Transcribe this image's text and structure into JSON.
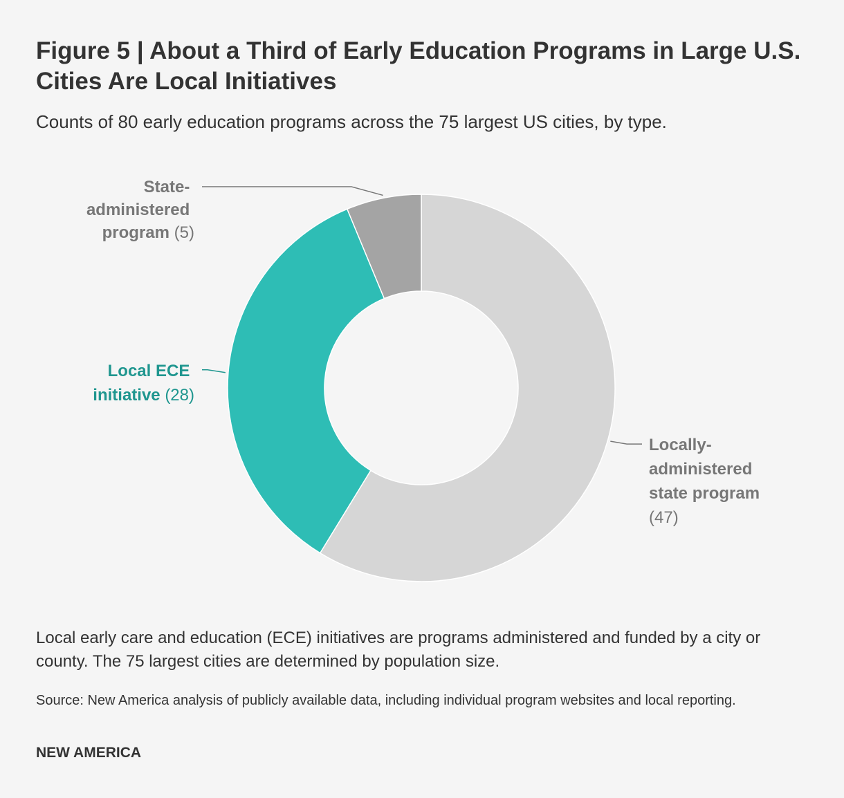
{
  "title": "Figure 5 | About a Third of Early Education Programs in Large U.S. Cities Are Local Initiatives",
  "subtitle": "Counts of 80 early education programs across the 75 largest US cities, by type.",
  "note": "Local early care and education (ECE) initiatives are programs administered and funded by a city or county. The 75 largest cities are determined by population size.",
  "source": "Source: New America analysis of publicly available data, including individual program websites and local reporting.",
  "brand": "NEW AMERICA",
  "chart_data": {
    "type": "pie",
    "donut": true,
    "total": 80,
    "legend": "none",
    "slices": [
      {
        "name": "Locally-administered state program",
        "label_lines": [
          "Locally-",
          "administered",
          "state program"
        ],
        "value": 47,
        "value_text": "(47)",
        "color": "#d6d6d6",
        "label_color": "#777777"
      },
      {
        "name": "Local ECE initiative",
        "label_lines": [
          "Local ECE",
          "initiative"
        ],
        "value": 28,
        "value_text": "(28)",
        "color": "#2ebdb5",
        "label_color": "#1f968f"
      },
      {
        "name": "State-administered program",
        "label_lines": [
          "State-",
          "administered",
          "program"
        ],
        "value": 5,
        "value_text": "(5)",
        "color": "#a4a4a4",
        "label_color": "#777777"
      }
    ]
  }
}
